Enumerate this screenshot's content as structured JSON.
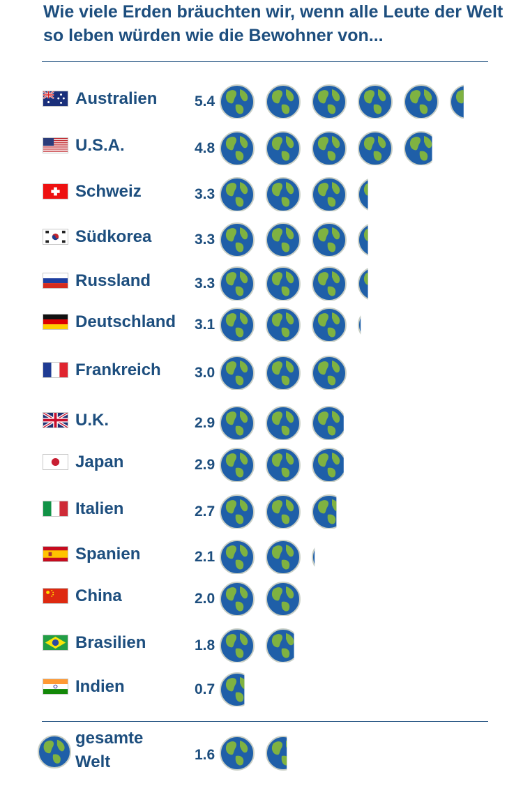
{
  "chart_data": {
    "type": "bar",
    "title": "Wie viele Erden bräuchten wir, wenn alle Leute der Welt so leben würden wie die Bewohner von...",
    "categories": [
      "Australien",
      "U.S.A.",
      "Schweiz",
      "Südkorea",
      "Russland",
      "Deutschland",
      "Frankreich",
      "U.K.",
      "Japan",
      "Italien",
      "Spanien",
      "China",
      "Brasilien",
      "Indien"
    ],
    "values": [
      5.4,
      4.8,
      3.3,
      3.3,
      3.3,
      3.1,
      3.0,
      2.9,
      2.9,
      2.7,
      2.1,
      2.0,
      1.8,
      0.7
    ],
    "value_labels": [
      "5.4",
      "4.8",
      "3.3",
      "3.3",
      "3.3",
      "3.1",
      "3.0",
      "2.9",
      "2.9",
      "2.7",
      "2.1",
      "2.0",
      "1.8",
      "0.7"
    ],
    "flags": [
      "australia-flag",
      "usa-flag",
      "switzerland-flag",
      "south-korea-flag",
      "russia-flag",
      "germany-flag",
      "france-flag",
      "uk-flag",
      "japan-flag",
      "italy-flag",
      "spain-flag",
      "china-flag",
      "brazil-flag",
      "india-flag"
    ],
    "world": {
      "label_line1": "gesamte",
      "label_line2": "Welt",
      "value": 1.6,
      "value_label": "1.6"
    }
  },
  "colors": {
    "text": "#1d4e7e",
    "ocean": "#1f5fa8",
    "land": "#7fb241",
    "globe_border": "#c9cfc5"
  }
}
